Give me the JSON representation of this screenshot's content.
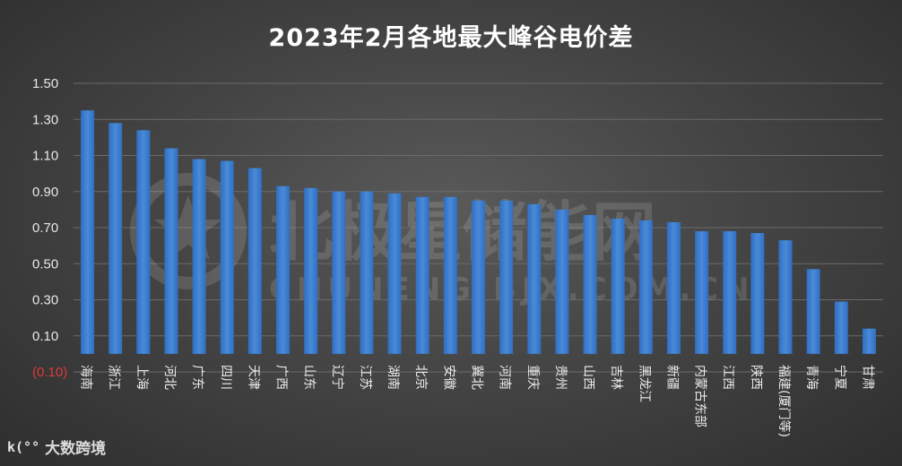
{
  "chart_data": {
    "type": "bar",
    "title": "2023年2月各地最大峰谷电价差",
    "categories": [
      "海南",
      "浙江",
      "上海",
      "河北",
      "广东",
      "四川",
      "天津",
      "广西",
      "山东",
      "辽宁",
      "江苏",
      "湖南",
      "北京",
      "安徽",
      "冀北",
      "河南",
      "重庆",
      "贵州",
      "山西",
      "吉林",
      "黑龙江",
      "新疆",
      "内蒙古东部",
      "江西",
      "陕西",
      "福建(厦门等)",
      "青海",
      "宁夏",
      "甘肃"
    ],
    "values": [
      1.35,
      1.28,
      1.24,
      1.14,
      1.08,
      1.07,
      1.03,
      0.93,
      0.92,
      0.9,
      0.9,
      0.89,
      0.87,
      0.87,
      0.85,
      0.85,
      0.83,
      0.8,
      0.77,
      0.75,
      0.74,
      0.73,
      0.68,
      0.68,
      0.67,
      0.63,
      0.47,
      0.29,
      0.14
    ],
    "yticks": [
      "1.50",
      "1.30",
      "1.10",
      "0.90",
      "0.70",
      "0.50",
      "0.30",
      "0.10",
      "(0.10)"
    ],
    "ylim": [
      -0.1,
      1.5
    ],
    "bar_color": "#3e7fd0",
    "negative_tick_color": "#e23a3a",
    "grid": true
  },
  "watermark": {
    "main": "北极星储能网",
    "sub": "CHUNENG.BJX.COM.CN"
  },
  "footer": {
    "logo_mark": "k(°°",
    "logo_text": "大数跨境"
  }
}
